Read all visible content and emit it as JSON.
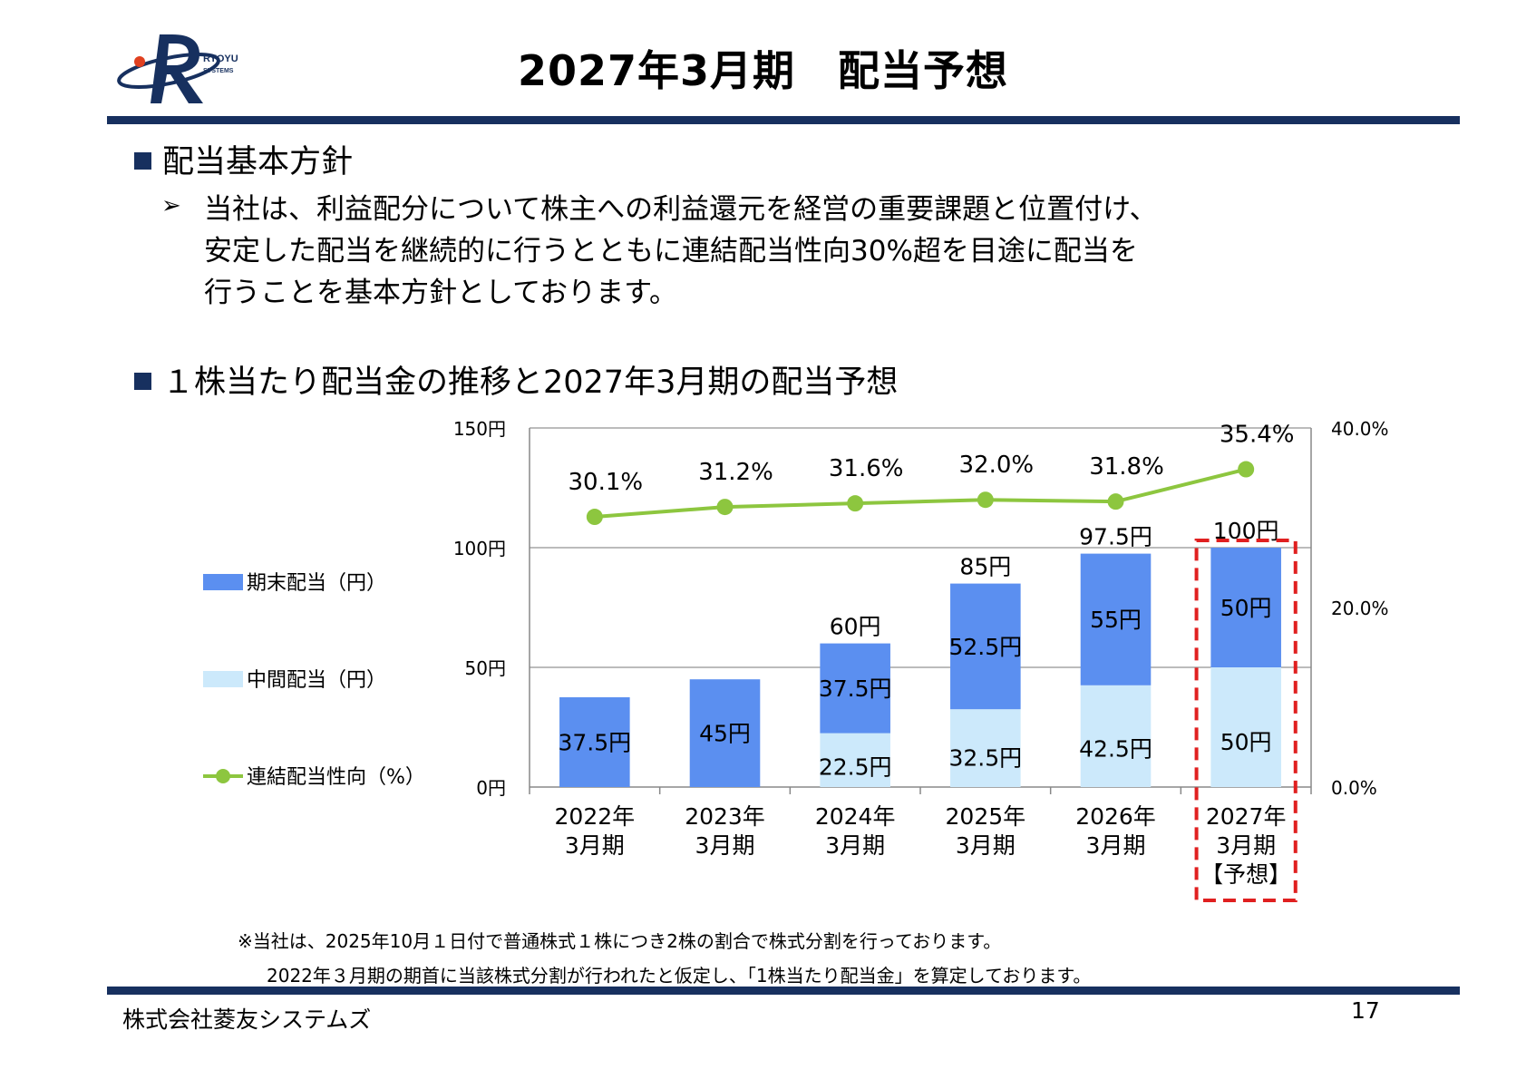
{
  "header": {
    "logo_text_top": "RYOYU",
    "logo_text_bottom": "SYSTEMS",
    "title": "2027年3月期　配当予想"
  },
  "policy": {
    "heading": "配当基本方針",
    "bullet": "➢",
    "lines": [
      "当社は、利益配分について株主への利益還元を経営の重要課題と位置付け、",
      "安定した配当を継続的に行うとともに連結配当性向30%超を目途に配当を",
      "行うことを基本方針としております。"
    ]
  },
  "chart_section": {
    "heading": "１株当たり配当金の推移と2027年3月期の配当予想"
  },
  "chart_data": {
    "type": "bar",
    "stacked": true,
    "categories": [
      [
        "2022年",
        "3月期"
      ],
      [
        "2023年",
        "3月期"
      ],
      [
        "2024年",
        "3月期"
      ],
      [
        "2025年",
        "3月期"
      ],
      [
        "2026年",
        "3月期"
      ],
      [
        "2027年",
        "3月期",
        "【予想】"
      ]
    ],
    "series": [
      {
        "name": "中間配当（円）",
        "values": [
          0,
          0,
          22.5,
          32.5,
          42.5,
          50
        ],
        "labels": [
          "",
          "",
          "22.5円",
          "32.5円",
          "42.5円",
          "50円"
        ],
        "color": "#cce9fb"
      },
      {
        "name": "期末配当（円）",
        "values": [
          37.5,
          45,
          37.5,
          52.5,
          55,
          50
        ],
        "labels": [
          "37.5円",
          "45円",
          "37.5円",
          "52.5円",
          "55円",
          "50円"
        ],
        "color": "#5b8ff0"
      }
    ],
    "totals": [
      37.5,
      45,
      60,
      85,
      97.5,
      100
    ],
    "total_labels": [
      "",
      "",
      "60円",
      "85円",
      "97.5円",
      "100円"
    ],
    "line_series": {
      "name": "連結配当性向（%）",
      "values": [
        30.1,
        31.2,
        31.6,
        32.0,
        31.8,
        35.4
      ],
      "labels": [
        "30.1%",
        "31.2%",
        "31.6%",
        "32.0%",
        "31.8%",
        "35.4%"
      ],
      "color": "#8dc63f"
    },
    "y_left": {
      "ticks": [
        0,
        50,
        100,
        150
      ],
      "tick_labels": [
        "0円",
        "50円",
        "100円",
        "150円"
      ],
      "lim": [
        0,
        150
      ]
    },
    "y_right": {
      "ticks": [
        0,
        20,
        40
      ],
      "tick_labels": [
        "0.0%",
        "20.0%",
        "40.0%"
      ],
      "lim": [
        0,
        40
      ]
    },
    "gridlines": true,
    "legend_position": "left",
    "forecast_highlight_index": 5,
    "highlight_color": "#e02020"
  },
  "footnote": {
    "line1": "※当社は、2025年10月１日付で普通株式１株につき2株の割合で株式分割を行っております。",
    "line2": "2022年３月期の期首に当該株式分割が行われたと仮定し、「1株当たり配当金」を算定しております。"
  },
  "footer": {
    "company": "株式会社菱友システムズ",
    "page_number": "17"
  }
}
